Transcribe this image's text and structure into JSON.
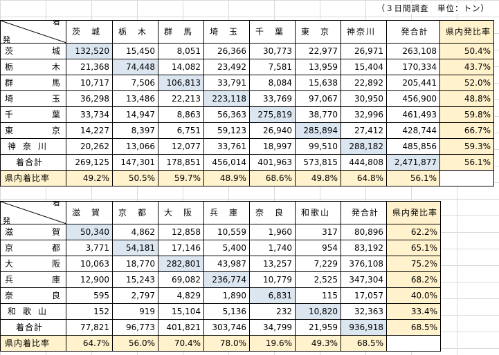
{
  "unit_note": "（３日間調査　単位：トン）",
  "table1": {
    "corner_top": "着",
    "corner_bottom": "発",
    "headers": [
      "茨　城",
      "栃　木",
      "群　馬",
      "埼　玉",
      "千　葉",
      "東　京",
      "神奈川",
      "発合計",
      "県内発比率"
    ],
    "rows": [
      {
        "label_a": "茨",
        "label_b": "城",
        "cells": [
          "132,520",
          "15,450",
          "8,051",
          "26,366",
          "30,773",
          "22,977",
          "26,971",
          "263,108",
          "50.4%"
        ]
      },
      {
        "label_a": "栃",
        "label_b": "木",
        "cells": [
          "21,368",
          "74,448",
          "14,082",
          "23,492",
          "7,581",
          "13,959",
          "15,404",
          "170,334",
          "43.7%"
        ]
      },
      {
        "label_a": "群",
        "label_b": "馬",
        "cells": [
          "10,717",
          "7,506",
          "106,813",
          "33,791",
          "8,084",
          "15,638",
          "22,892",
          "205,441",
          "52.0%"
        ]
      },
      {
        "label_a": "埼",
        "label_b": "玉",
        "cells": [
          "36,298",
          "13,486",
          "22,213",
          "223,118",
          "33,769",
          "97,067",
          "30,950",
          "456,900",
          "48.8%"
        ]
      },
      {
        "label_a": "千",
        "label_b": "葉",
        "cells": [
          "33,734",
          "14,947",
          "8,863",
          "56,363",
          "275,819",
          "38,770",
          "32,996",
          "461,493",
          "59.8%"
        ]
      },
      {
        "label_a": "東",
        "label_b": "京",
        "cells": [
          "14,227",
          "8,397",
          "6,751",
          "59,123",
          "26,940",
          "285,894",
          "27,412",
          "428,744",
          "66.7%"
        ]
      },
      {
        "label": "神奈川",
        "cells": [
          "20,262",
          "13,066",
          "12,077",
          "33,761",
          "18,997",
          "99,510",
          "288,182",
          "485,856",
          "59.3%"
        ]
      }
    ],
    "total_label": "着合計",
    "total_cells": [
      "269,125",
      "147,301",
      "178,851",
      "456,014",
      "401,963",
      "573,815",
      "444,808",
      "2,471,877",
      "56.1%"
    ],
    "ratio_label": "県内着比率",
    "ratio_cells": [
      "49.2%",
      "50.5%",
      "59.7%",
      "48.9%",
      "68.6%",
      "49.8%",
      "64.8%",
      "56.1%"
    ]
  },
  "table2": {
    "corner_top": "着",
    "corner_bottom": "発",
    "headers": [
      "滋　賀",
      "京　都",
      "大　阪",
      "兵　庫",
      "奈　良",
      "和歌山",
      "発合計",
      "県内発比率"
    ],
    "rows": [
      {
        "label_a": "滋",
        "label_b": "賀",
        "cells": [
          "50,340",
          "4,862",
          "12,858",
          "10,559",
          "1,960",
          "317",
          "80,896",
          "62.2%"
        ]
      },
      {
        "label_a": "京",
        "label_b": "都",
        "cells": [
          "3,771",
          "54,181",
          "17,146",
          "5,400",
          "1,740",
          "954",
          "83,192",
          "65.1%"
        ]
      },
      {
        "label_a": "大",
        "label_b": "阪",
        "cells": [
          "10,063",
          "18,770",
          "282,801",
          "43,987",
          "13,257",
          "7,229",
          "376,108",
          "75.2%"
        ]
      },
      {
        "label_a": "兵",
        "label_b": "庫",
        "cells": [
          "12,900",
          "15,243",
          "69,082",
          "236,774",
          "10,779",
          "2,525",
          "347,304",
          "68.2%"
        ]
      },
      {
        "label_a": "奈",
        "label_b": "良",
        "cells": [
          "595",
          "2,797",
          "4,829",
          "1,890",
          "6,831",
          "115",
          "17,057",
          "40.0%"
        ]
      },
      {
        "label": "和歌山",
        "cells": [
          "152",
          "919",
          "15,104",
          "5,136",
          "232",
          "10,820",
          "32,363",
          "33.4%"
        ]
      }
    ],
    "total_label": "着合計",
    "total_cells": [
      "77,821",
      "96,773",
      "401,821",
      "303,746",
      "34,799",
      "21,959",
      "936,918",
      "68.5%"
    ],
    "ratio_label": "県内着比率",
    "ratio_cells": [
      "64.7%",
      "56.0%",
      "70.4%",
      "78.0%",
      "19.6%",
      "49.3%",
      "68.5%"
    ]
  }
}
